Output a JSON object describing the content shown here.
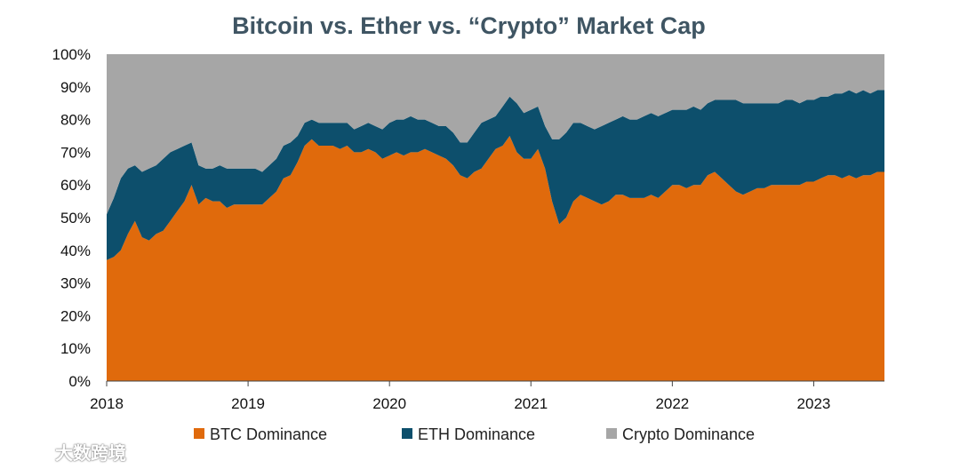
{
  "chart_data": {
    "type": "area",
    "stacked": true,
    "title": "Bitcoin vs. Ether vs. “Crypto” Market Cap",
    "xlabel": "",
    "ylabel": "",
    "x_ticks": [
      "2018",
      "2019",
      "2020",
      "2021",
      "2022",
      "2023"
    ],
    "y_ticks": [
      "0%",
      "10%",
      "20%",
      "30%",
      "40%",
      "50%",
      "60%",
      "70%",
      "80%",
      "90%",
      "100%"
    ],
    "ylim": [
      0,
      100
    ],
    "xlim": [
      2018.0,
      2023.5
    ],
    "grid": false,
    "legend_position": "bottom",
    "x": [
      2018.0,
      2018.05,
      2018.1,
      2018.15,
      2018.2,
      2018.25,
      2018.3,
      2018.35,
      2018.4,
      2018.45,
      2018.5,
      2018.55,
      2018.6,
      2018.65,
      2018.7,
      2018.75,
      2018.8,
      2018.85,
      2018.9,
      2018.95,
      2019.0,
      2019.05,
      2019.1,
      2019.15,
      2019.2,
      2019.25,
      2019.3,
      2019.35,
      2019.4,
      2019.45,
      2019.5,
      2019.55,
      2019.6,
      2019.65,
      2019.7,
      2019.75,
      2019.8,
      2019.85,
      2019.9,
      2019.95,
      2020.0,
      2020.05,
      2020.1,
      2020.15,
      2020.2,
      2020.25,
      2020.3,
      2020.35,
      2020.4,
      2020.45,
      2020.5,
      2020.55,
      2020.6,
      2020.65,
      2020.7,
      2020.75,
      2020.8,
      2020.85,
      2020.9,
      2020.95,
      2021.0,
      2021.05,
      2021.1,
      2021.15,
      2021.2,
      2021.25,
      2021.3,
      2021.35,
      2021.4,
      2021.45,
      2021.5,
      2021.55,
      2021.6,
      2021.65,
      2021.7,
      2021.75,
      2021.8,
      2021.85,
      2021.9,
      2021.95,
      2022.0,
      2022.05,
      2022.1,
      2022.15,
      2022.2,
      2022.25,
      2022.3,
      2022.35,
      2022.4,
      2022.45,
      2022.5,
      2022.55,
      2022.6,
      2022.65,
      2022.7,
      2022.75,
      2022.8,
      2022.85,
      2022.9,
      2022.95,
      2023.0,
      2023.05,
      2023.1,
      2023.15,
      2023.2,
      2023.25,
      2023.3,
      2023.35,
      2023.4,
      2023.45,
      2023.5
    ],
    "series": [
      {
        "name": "BTC Dominance",
        "color": "#e06a0c",
        "values": [
          37,
          38,
          40,
          45,
          49,
          44,
          43,
          45,
          46,
          49,
          52,
          55,
          60,
          54,
          56,
          55,
          55,
          53,
          54,
          54,
          54,
          54,
          54,
          56,
          58,
          62,
          63,
          67,
          72,
          74,
          72,
          72,
          72,
          71,
          72,
          70,
          70,
          71,
          70,
          68,
          69,
          70,
          69,
          70,
          70,
          71,
          70,
          69,
          68,
          66,
          63,
          62,
          64,
          65,
          68,
          71,
          72,
          75,
          70,
          68,
          68,
          71,
          65,
          55,
          48,
          50,
          55,
          57,
          56,
          55,
          54,
          55,
          57,
          57,
          56,
          56,
          56,
          57,
          56,
          58,
          60,
          60,
          59,
          60,
          60,
          63,
          64,
          62,
          60,
          58,
          57,
          58,
          59,
          59,
          60,
          60,
          60,
          60,
          60,
          61,
          61,
          62,
          63,
          63,
          62,
          63,
          62,
          63,
          63,
          64,
          64
        ]
      },
      {
        "name": "ETH Dominance",
        "color": "#0d4f6c",
        "values": [
          14,
          18,
          22,
          20,
          17,
          20,
          22,
          21,
          22,
          21,
          19,
          17,
          13,
          12,
          9,
          10,
          11,
          12,
          11,
          11,
          11,
          11,
          10,
          10,
          10,
          10,
          10,
          8,
          7,
          6,
          7,
          7,
          7,
          8,
          7,
          7,
          8,
          8,
          8,
          9,
          10,
          10,
          11,
          11,
          10,
          9,
          9,
          9,
          10,
          10,
          10,
          11,
          12,
          14,
          12,
          10,
          12,
          12,
          15,
          14,
          15,
          13,
          13,
          19,
          26,
          26,
          24,
          22,
          22,
          22,
          24,
          24,
          23,
          24,
          24,
          24,
          25,
          25,
          25,
          24,
          23,
          23,
          24,
          24,
          23,
          22,
          22,
          24,
          26,
          28,
          28,
          27,
          26,
          26,
          25,
          25,
          26,
          26,
          25,
          25,
          25,
          25,
          24,
          25,
          26,
          26,
          26,
          26,
          25,
          25,
          25
        ]
      },
      {
        "name": "Crypto Dominance",
        "color": "#a6a6a6",
        "values": [
          49,
          44,
          38,
          35,
          34,
          36,
          35,
          34,
          32,
          30,
          29,
          28,
          27,
          34,
          35,
          35,
          34,
          35,
          35,
          35,
          35,
          35,
          36,
          34,
          32,
          28,
          27,
          25,
          21,
          20,
          21,
          21,
          21,
          21,
          21,
          23,
          22,
          21,
          22,
          23,
          21,
          20,
          20,
          19,
          20,
          20,
          21,
          22,
          22,
          24,
          27,
          27,
          24,
          21,
          20,
          19,
          16,
          13,
          15,
          18,
          17,
          16,
          22,
          26,
          26,
          24,
          21,
          21,
          22,
          23,
          22,
          21,
          20,
          19,
          20,
          20,
          19,
          18,
          19,
          18,
          17,
          17,
          17,
          16,
          17,
          15,
          14,
          14,
          14,
          14,
          15,
          15,
          15,
          15,
          15,
          15,
          14,
          14,
          15,
          14,
          14,
          13,
          13,
          12,
          12,
          11,
          12,
          11,
          12,
          11,
          11
        ]
      }
    ]
  },
  "watermark": {
    "text": "大数跨境"
  }
}
